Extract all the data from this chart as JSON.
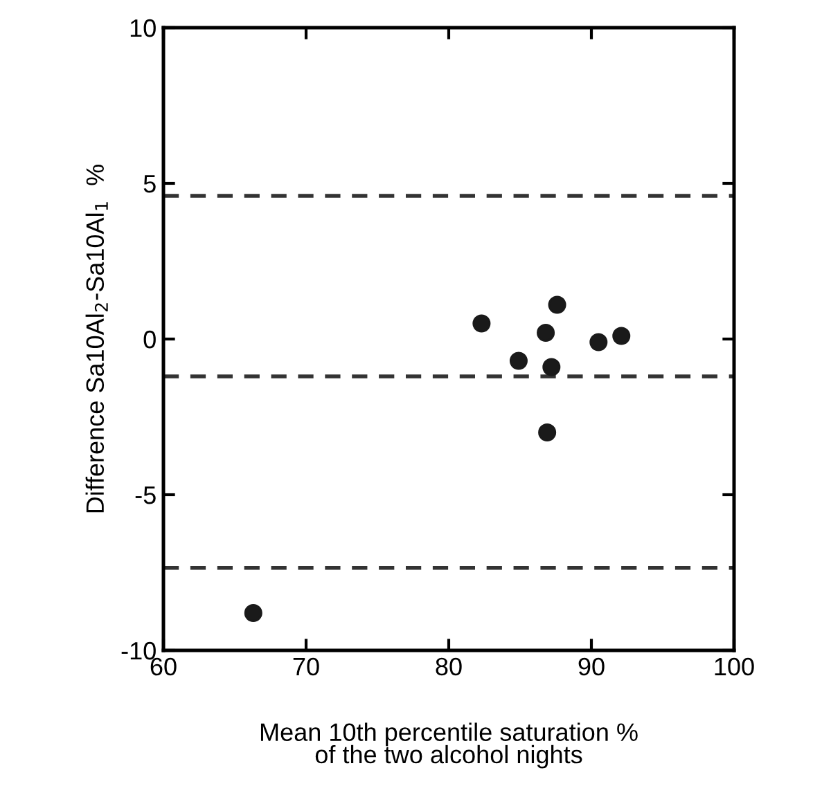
{
  "chart_data": {
    "type": "scatter",
    "xlabel": "Mean 10th percentile saturation %\nof the two alcohol nights",
    "ylabel": "Difference Sa10Al$_{2}$-Sa10Al$_{1}$  %",
    "x": [
      66.3,
      82.3,
      84.9,
      86.8,
      87.6,
      87.2,
      86.9,
      90.5,
      92.1
    ],
    "values": [
      -8.8,
      0.5,
      -0.7,
      0.2,
      1.1,
      -0.9,
      -3.0,
      -0.1,
      0.1
    ],
    "color": "#1a1a1a",
    "marker": "circle",
    "xlim": [
      60,
      100
    ],
    "ylim": [
      -10,
      10
    ],
    "xticks": [
      60,
      70,
      80,
      90,
      100
    ],
    "yticks": [
      -10,
      -5,
      0,
      5,
      10
    ],
    "ref_lines": [
      {
        "axis": "y",
        "value": 4.6,
        "line_style": "dashed",
        "color": "#333333"
      },
      {
        "axis": "y",
        "value": -1.2,
        "line_style": "dashed",
        "color": "#333333"
      },
      {
        "axis": "y",
        "value": -7.35,
        "line_style": "dashed",
        "color": "#333333"
      }
    ],
    "grid": false
  }
}
